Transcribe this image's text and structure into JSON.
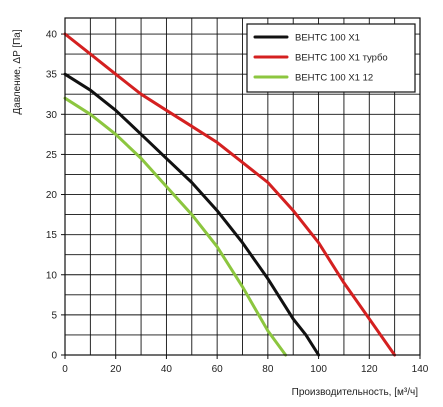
{
  "chart_data": {
    "type": "line",
    "title": "",
    "xlabel": "Производительность, [м³/ч]",
    "ylabel": "Давление, ΔP [Па]",
    "xlim": [
      0,
      140
    ],
    "ylim": [
      0,
      42
    ],
    "x_ticks": [
      "0",
      "20",
      "40",
      "60",
      "80",
      "100",
      "120",
      "140"
    ],
    "y_ticks": [
      "0",
      "5",
      "10",
      "15",
      "20",
      "25",
      "30",
      "35",
      "40"
    ],
    "grid": true,
    "legend_position": "top-right",
    "series": [
      {
        "name": "ВЕНТС 100 Х1",
        "color": "#111111",
        "x": [
          0,
          10,
          20,
          30,
          40,
          50,
          60,
          70,
          80,
          90,
          95,
          100
        ],
        "y": [
          35,
          33,
          30.5,
          27.5,
          24.5,
          21.5,
          18,
          14,
          9.5,
          4.5,
          2.5,
          0
        ]
      },
      {
        "name": "ВЕНТС 100 Х1 турбо",
        "color": "#d42020",
        "x": [
          0,
          10,
          20,
          30,
          40,
          50,
          60,
          70,
          80,
          90,
          100,
          110,
          120,
          130
        ],
        "y": [
          40,
          37.5,
          35,
          32.5,
          30.5,
          28.5,
          26.5,
          24,
          21.5,
          18,
          14,
          9,
          4.5,
          0
        ]
      },
      {
        "name": "ВЕНТС 100 Х1  12",
        "color": "#8cc63f",
        "x": [
          0,
          10,
          20,
          30,
          40,
          50,
          60,
          70,
          80,
          87
        ],
        "y": [
          32,
          30,
          27.5,
          24.5,
          21,
          17.5,
          13.5,
          8.5,
          3,
          0
        ]
      }
    ]
  }
}
